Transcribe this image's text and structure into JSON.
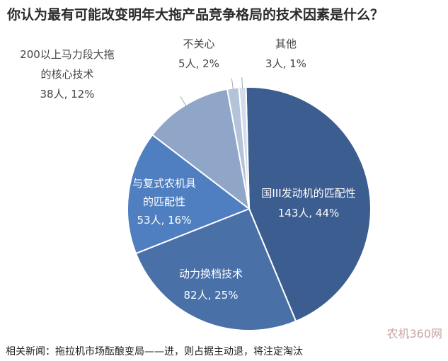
{
  "title": "你认为最有可能改变明年大拖产品竞争格局的技术因素是什么？",
  "chart_data": {
    "type": "pie",
    "slices": [
      {
        "label_lines": [
          "国III发动机的匹配性"
        ],
        "value_text": "143人, 44%",
        "count": 143,
        "percent": 44,
        "color": "#3c5d8f",
        "label_color": "#ffffff"
      },
      {
        "label_lines": [
          "动力换档技术"
        ],
        "value_text": "82人, 25%",
        "count": 82,
        "percent": 25,
        "color": "#4a70a8",
        "label_color": "#ffffff"
      },
      {
        "label_lines": [
          "与复式农机具",
          "的匹配性"
        ],
        "value_text": "53人, 16%",
        "count": 53,
        "percent": 16,
        "color": "#4f7fc0",
        "label_color": "#ffffff"
      },
      {
        "label_lines": [
          "200以上马力段大拖",
          "的核心技术"
        ],
        "value_text": "38人, 12%",
        "count": 38,
        "percent": 12,
        "color": "#8fa6c9",
        "label_color": "#444444"
      },
      {
        "label_lines": [
          "不关心"
        ],
        "value_text": "5人, 2%",
        "count": 5,
        "percent": 2,
        "color": "#b4c3da",
        "label_color": "#444444"
      },
      {
        "label_lines": [
          "其他"
        ],
        "value_text": "3人, 1%",
        "count": 3,
        "percent": 1,
        "color": "#d3dcea",
        "label_color": "#444444"
      }
    ]
  },
  "footer": "相关新闻：拖拉机市场酝酿变局——进，则占据主动退，将注定淘汰",
  "watermark": "农机360网"
}
